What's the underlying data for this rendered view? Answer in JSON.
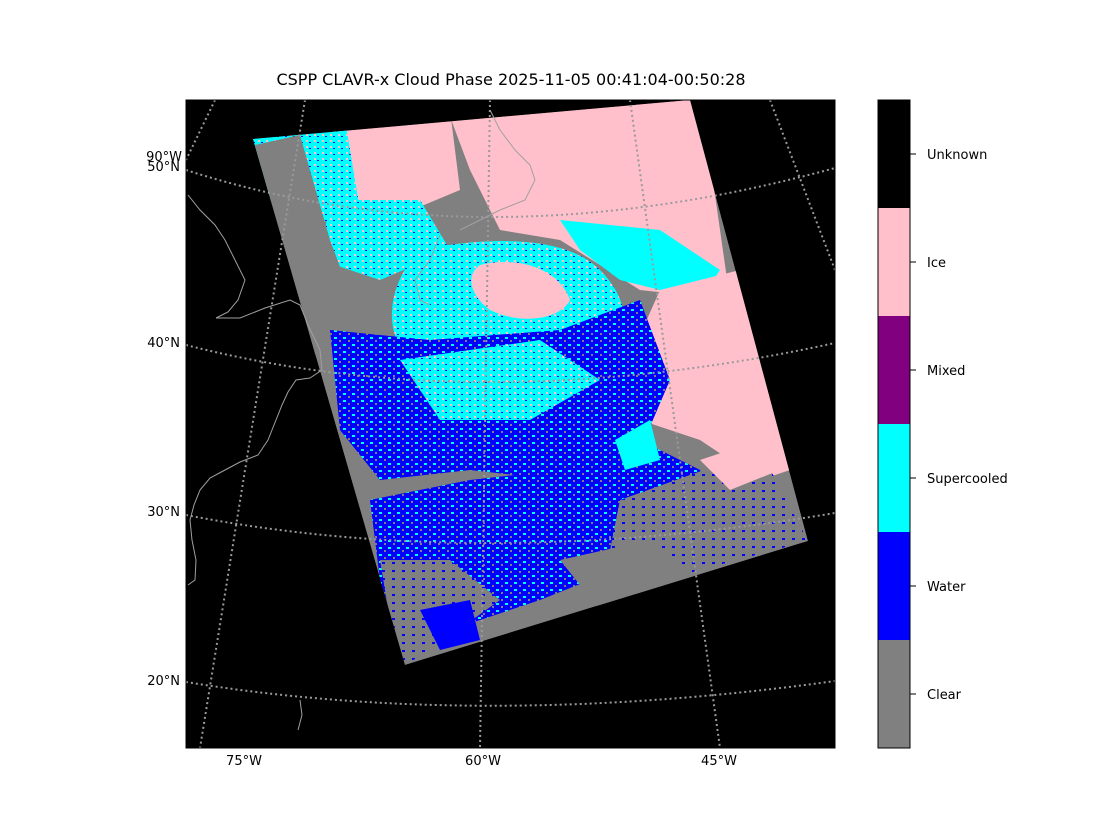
{
  "title": "CSPP CLAVR-x Cloud Phase 2025-11-05 00:41:04-00:50:28",
  "lat_labels": [
    "50°N",
    "40°N",
    "30°N",
    "20°N"
  ],
  "lon_labels": [
    "75°W",
    "60°W",
    "45°W"
  ],
  "extra_label": "90°W",
  "legend": {
    "classes": [
      {
        "label": "Unknown",
        "color": "#000000"
      },
      {
        "label": "Ice",
        "color": "#ffc0cb"
      },
      {
        "label": "Mixed",
        "color": "#800080"
      },
      {
        "label": "Supercooled",
        "color": "#00ffff"
      },
      {
        "label": "Water",
        "color": "#0000ff"
      },
      {
        "label": "Clear",
        "color": "#808080"
      }
    ]
  },
  "colors": {
    "background": "#000000",
    "graticule": "#9a9a9a",
    "coastline": "#a0a0a0"
  }
}
